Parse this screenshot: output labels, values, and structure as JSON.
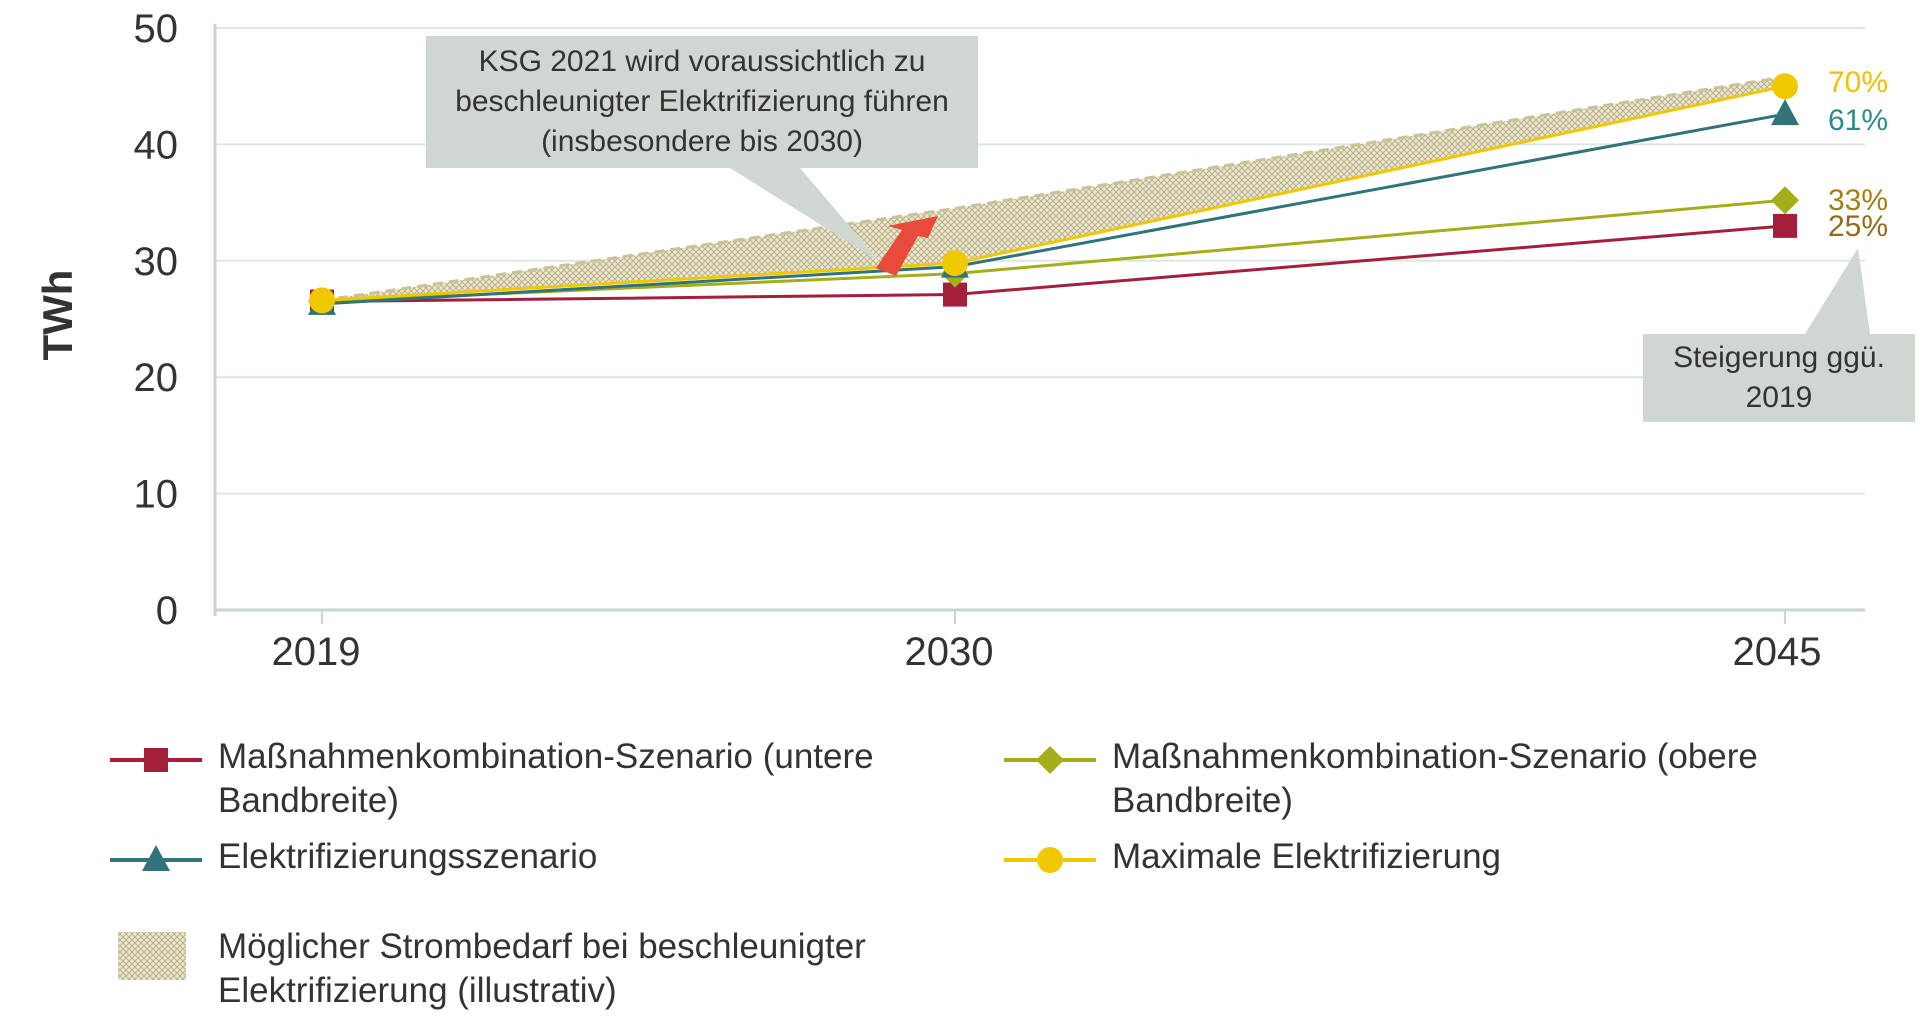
{
  "chart_data": {
    "type": "line",
    "title": "",
    "xlabel": "",
    "ylabel": "TWh",
    "categories": [
      "2019",
      "2030",
      "2045"
    ],
    "ylim": [
      0,
      50
    ],
    "yticks": [
      0,
      10,
      20,
      30,
      40,
      50
    ],
    "grid": true,
    "legend_position": "bottom",
    "series": [
      {
        "name": "Maßnahmenkombination-Szenario (untere Bandbreite)",
        "values": [
          26.5,
          27.1,
          33.0
        ],
        "color": "#a31f3a",
        "marker": "square",
        "end_label": "25%",
        "end_label_color": "#8f6d1a"
      },
      {
        "name": "Maßnahmenkombination-Szenario (obere Bandbreite)",
        "values": [
          26.5,
          28.9,
          35.2
        ],
        "color": "#a4ad1a",
        "marker": "diamond",
        "end_label": "33%",
        "end_label_color": "#a08016"
      },
      {
        "name": "Elektrifizierungsszenario",
        "values": [
          26.3,
          29.5,
          42.6
        ],
        "color": "#2e747a",
        "marker": "triangle",
        "end_label": "61%",
        "end_label_color": "#2e8a8e"
      },
      {
        "name": "Maximale Elektrifizierung",
        "values": [
          26.6,
          29.8,
          45.0
        ],
        "color": "#f0c800",
        "marker": "circle",
        "end_label": "70%",
        "end_label_color": "#f0c000"
      }
    ],
    "band": {
      "name": "Möglicher Strombedarf bei beschleunigter Elektrifizierung (illustrativ)",
      "upper": [
        26.6,
        34.5,
        45.8
      ],
      "lower": [
        26.6,
        29.8,
        45.0
      ],
      "color": "#c9c39a"
    },
    "annotations": [
      {
        "id": "ksg",
        "text": "KSG 2021 wird voraussichtlich zu beschleunigter Elektrifizierung führen (insbesondere bis 2030)"
      },
      {
        "id": "increase",
        "text": "Steigerung ggü. 2019"
      }
    ]
  },
  "colors": {
    "grid": "#dde7e0",
    "axis": "#c8d6cc",
    "callout_bg": "#cfd7d0",
    "arrow": "#e84b3a"
  }
}
